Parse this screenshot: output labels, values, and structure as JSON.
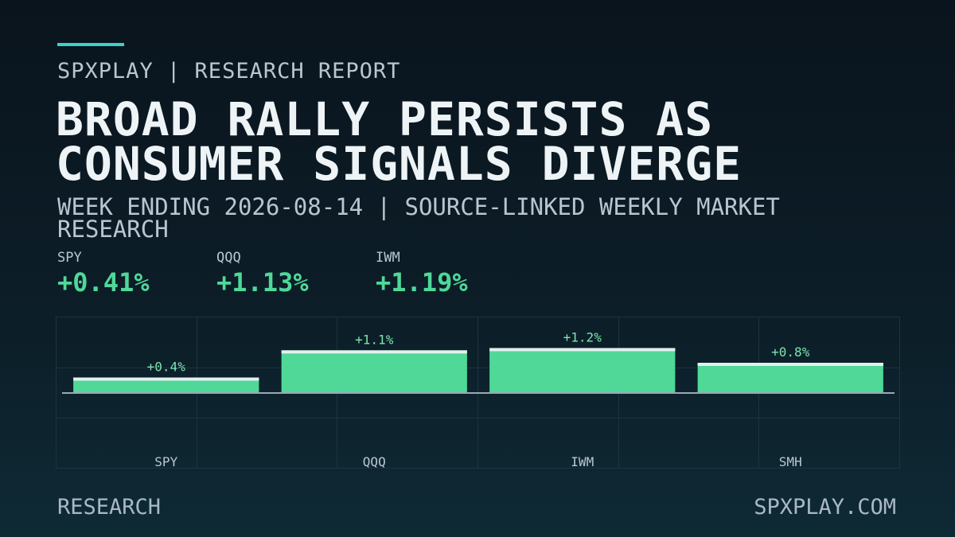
{
  "header": {
    "kicker": "SPXPLAY | RESEARCH REPORT",
    "title": "BROAD RALLY PERSISTS AS CONSUMER SIGNALS DIVERGE",
    "subtitle": "WEEK ENDING 2026-08-14 | SOURCE-LINKED WEEKLY MARKET RESEARCH"
  },
  "stats": [
    {
      "label": "SPY",
      "value": "+0.41%"
    },
    {
      "label": "QQQ",
      "value": "+1.13%"
    },
    {
      "label": "IWM",
      "value": "+1.19%"
    }
  ],
  "chart_data": {
    "type": "bar",
    "categories": [
      "SPY",
      "QQQ",
      "IWM",
      "SMH"
    ],
    "values": [
      0.41,
      1.13,
      1.19,
      0.8
    ],
    "value_labels": [
      "+0.4%",
      "+1.1%",
      "+1.2%",
      "+0.8%"
    ],
    "color": "#4fd898",
    "ylim": [
      -2,
      2
    ]
  },
  "footer": {
    "left": "RESEARCH",
    "right": "SPXPLAY.COM"
  }
}
